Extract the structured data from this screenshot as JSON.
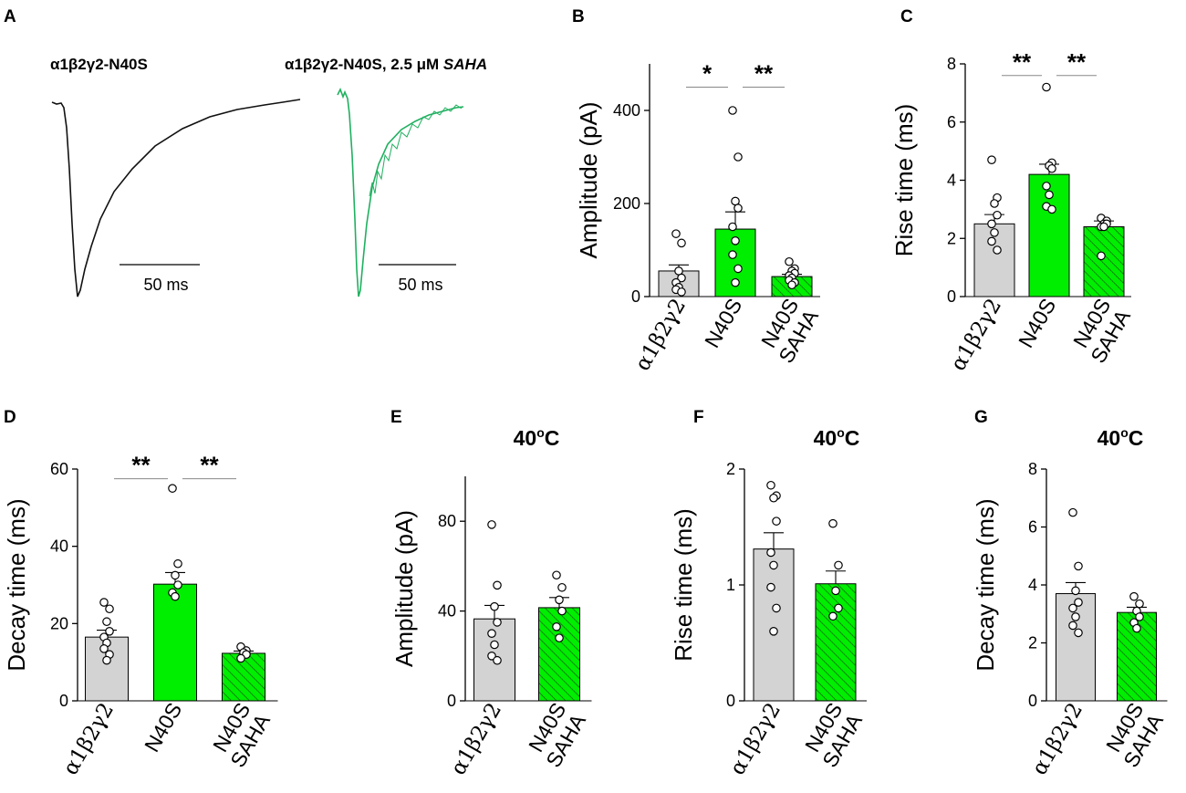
{
  "colors": {
    "control_gray": "#d3d3d3",
    "mutant_green": "#00ee00",
    "trace_black": "#111111",
    "trace_green": "#20b060"
  },
  "panel_a": {
    "letter": "A",
    "trace1_label": "α1β2γ2-N40S",
    "trace2_label_prefix": "α1β2γ2-N40S, 2.5 μM ",
    "trace2_label_drug": "SAHA",
    "scalebar1_label": "50 ms",
    "scalebar2_label": "50 ms"
  },
  "chart_data": [
    {
      "panel": "B",
      "type": "bar",
      "title": "",
      "ylabel": "Amplitude (pA)",
      "ylim": [
        0,
        500
      ],
      "yticks": [
        0,
        200,
        400
      ],
      "categories": [
        "α1β2γ2",
        "N40S",
        "N40S SAHA"
      ],
      "category_lines": [
        [
          "α1β2γ2"
        ],
        [
          "N40S"
        ],
        [
          "N40S",
          "SAHA"
        ]
      ],
      "values": [
        55,
        145,
        43
      ],
      "sem": [
        13,
        37,
        5
      ],
      "points": [
        [
          135,
          115,
          55,
          40,
          30,
          20,
          15,
          10
        ],
        [
          400,
          300,
          205,
          190,
          150,
          120,
          90,
          60,
          30
        ],
        [
          75,
          60,
          55,
          50,
          45,
          40,
          35,
          30,
          25
        ]
      ],
      "fills": [
        "gray",
        "green",
        "hatched"
      ],
      "significance": [
        {
          "from": 0,
          "to": 1,
          "label": "*",
          "y": 450
        },
        {
          "from": 1,
          "to": 2,
          "label": "**",
          "y": 450
        }
      ]
    },
    {
      "panel": "C",
      "type": "bar",
      "title": "",
      "ylabel": "Rise time (ms)",
      "ylim": [
        0,
        8
      ],
      "yticks": [
        0,
        2,
        4,
        6,
        8
      ],
      "categories": [
        "α1β2γ2",
        "N40S",
        "N40S SAHA"
      ],
      "category_lines": [
        [
          "α1β2γ2"
        ],
        [
          "N40S"
        ],
        [
          "N40S",
          "SAHA"
        ]
      ],
      "values": [
        2.5,
        4.2,
        2.4
      ],
      "sem": [
        0.32,
        0.35,
        0.2
      ],
      "points": [
        [
          4.7,
          3.4,
          3.2,
          2.8,
          2.5,
          2.2,
          1.9,
          1.6
        ],
        [
          7.2,
          4.6,
          4.5,
          4.4,
          3.8,
          3.5,
          3.1,
          3.0
        ],
        [
          2.7,
          2.6,
          2.5,
          2.5,
          2.4,
          2.4,
          1.4
        ]
      ],
      "fills": [
        "gray",
        "green",
        "hatched"
      ],
      "significance": [
        {
          "from": 0,
          "to": 1,
          "label": "**",
          "y": 7.6
        },
        {
          "from": 1,
          "to": 2,
          "label": "**",
          "y": 7.6
        }
      ]
    },
    {
      "panel": "D",
      "type": "bar",
      "title": "",
      "ylabel": "Decay time (ms)",
      "ylim": [
        0,
        60
      ],
      "yticks": [
        0,
        20,
        40,
        60
      ],
      "categories": [
        "α1β2γ2",
        "N40S",
        "N40S SAHA"
      ],
      "category_lines": [
        [
          "α1β2γ2"
        ],
        [
          "N40S"
        ],
        [
          "N40S",
          "SAHA"
        ]
      ],
      "values": [
        16.5,
        30.2,
        12.3
      ],
      "sem": [
        1.8,
        3.0,
        0.6
      ],
      "points": [
        [
          25.5,
          23.8,
          20.5,
          18.0,
          16.5,
          15.0,
          13.5,
          12.0,
          10.5
        ],
        [
          55.0,
          35.5,
          32.5,
          30.0,
          28.0,
          27.0
        ],
        [
          14.0,
          13.0,
          12.5,
          12.0,
          11.0
        ]
      ],
      "fills": [
        "gray",
        "green",
        "hatched"
      ],
      "significance": [
        {
          "from": 0,
          "to": 1,
          "label": "**",
          "y": 57.5
        },
        {
          "from": 1,
          "to": 2,
          "label": "**",
          "y": 57.5
        }
      ]
    },
    {
      "panel": "E",
      "type": "bar",
      "title": "40°C",
      "ylabel": "Amplitude (pA)",
      "ylim": [
        0,
        100
      ],
      "yticks": [
        0,
        40,
        80
      ],
      "categories": [
        "α1β2γ2",
        "N40S SAHA"
      ],
      "category_lines": [
        [
          "α1β2γ2"
        ],
        [
          "N40S",
          "SAHA"
        ]
      ],
      "values": [
        36.5,
        41.5
      ],
      "sem": [
        6.0,
        4.5
      ],
      "points": [
        [
          78.5,
          51.5,
          42.0,
          35.0,
          30.0,
          25.0,
          20.0,
          18.0
        ],
        [
          56.0,
          50.5,
          45.0,
          40.0,
          33.0,
          28.0
        ]
      ],
      "fills": [
        "gray",
        "hatched"
      ],
      "significance": []
    },
    {
      "panel": "F",
      "type": "bar",
      "title": "40°C",
      "ylabel": "Rise time (ms)",
      "ylim": [
        0,
        2
      ],
      "yticks": [
        0,
        1,
        2
      ],
      "categories": [
        "α1β2γ2",
        "N40S SAHA"
      ],
      "category_lines": [
        [
          "α1β2γ2"
        ],
        [
          "N40S",
          "SAHA"
        ]
      ],
      "values": [
        1.31,
        1.01
      ],
      "sem": [
        0.14,
        0.11
      ],
      "points": [
        [
          1.86,
          1.77,
          1.75,
          1.55,
          1.28,
          1.17,
          0.98,
          0.8,
          0.6
        ],
        [
          1.53,
          1.17,
          0.95,
          0.8,
          0.73
        ]
      ],
      "fills": [
        "gray",
        "hatched"
      ],
      "significance": []
    },
    {
      "panel": "G",
      "type": "bar",
      "title": "40°C",
      "ylabel": "Decay time (ms)",
      "ylim": [
        0,
        8
      ],
      "yticks": [
        0,
        2,
        4,
        6,
        8
      ],
      "categories": [
        "α1β2γ2",
        "N40S SAHA"
      ],
      "category_lines": [
        [
          "α1β2γ2"
        ],
        [
          "N40S",
          "SAHA"
        ]
      ],
      "values": [
        3.7,
        3.05
      ],
      "sem": [
        0.38,
        0.18
      ],
      "points": [
        [
          6.5,
          4.65,
          3.8,
          3.4,
          3.2,
          2.9,
          2.6,
          2.35
        ],
        [
          3.6,
          3.35,
          3.1,
          2.9,
          2.7,
          2.5
        ]
      ],
      "fills": [
        "gray",
        "hatched"
      ],
      "significance": []
    }
  ]
}
